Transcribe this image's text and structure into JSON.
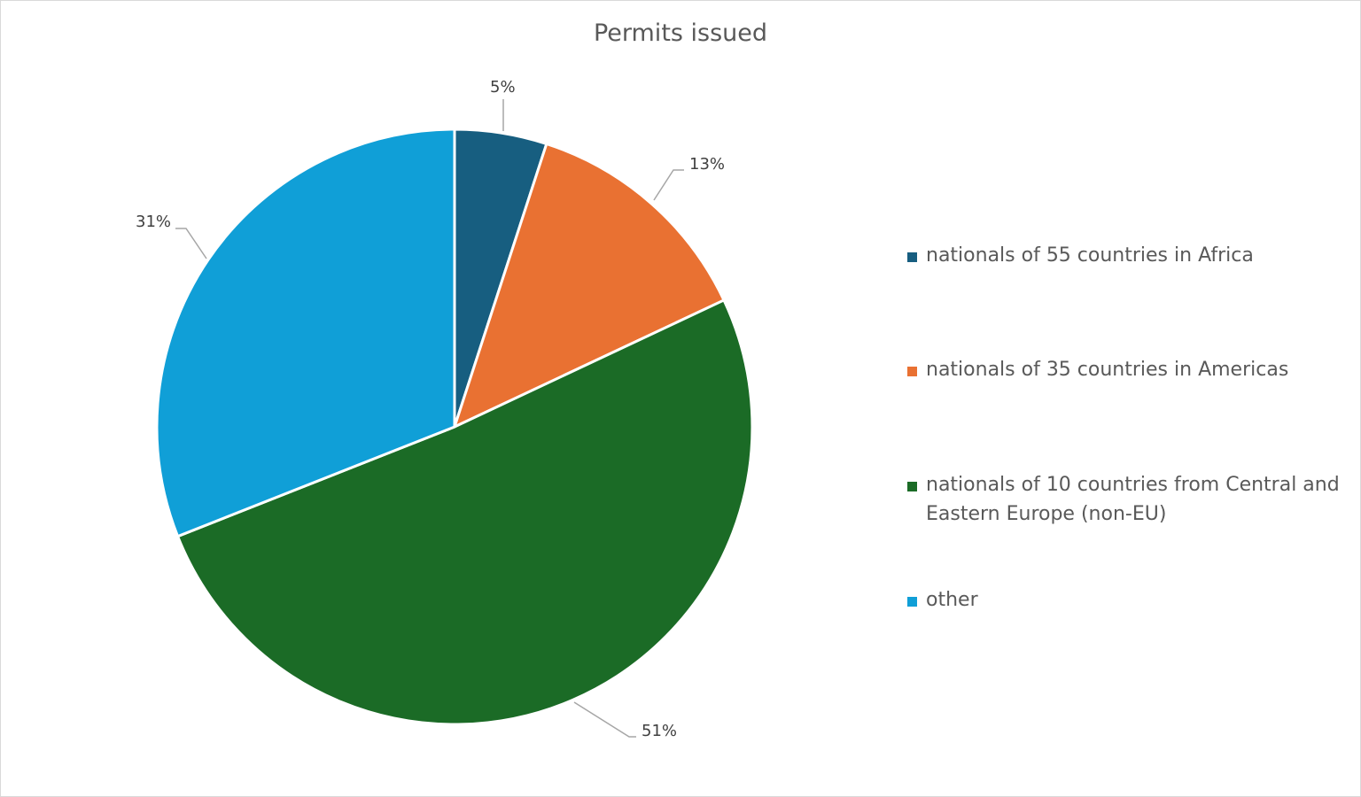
{
  "chart_data": {
    "type": "pie",
    "title": "Permits issued",
    "categories": [
      "nationals of 55 countries in Africa",
      "nationals of 35 countries in Americas",
      "nationals of 10 countries from Central and Eastern Europe (non-EU)",
      "other"
    ],
    "values": [
      5,
      13,
      51,
      31
    ],
    "labels": [
      "5%",
      "13%",
      "51%",
      "31%"
    ],
    "colors": [
      "#175e80",
      "#e97132",
      "#1b6b26",
      "#109fd7"
    ],
    "legend_position": "right",
    "start_angle_deg": 0,
    "direction": "clockwise"
  },
  "legend": {
    "items": [
      {
        "label_line1": "nationals of 55 countries in Africa",
        "label_line2": ""
      },
      {
        "label_line1": "nationals of 35 countries in Americas",
        "label_line2": ""
      },
      {
        "label_line1": "nationals of 10 countries from Central and",
        "label_line2": "Eastern Europe (non-EU)"
      },
      {
        "label_line1": "other",
        "label_line2": ""
      }
    ]
  }
}
